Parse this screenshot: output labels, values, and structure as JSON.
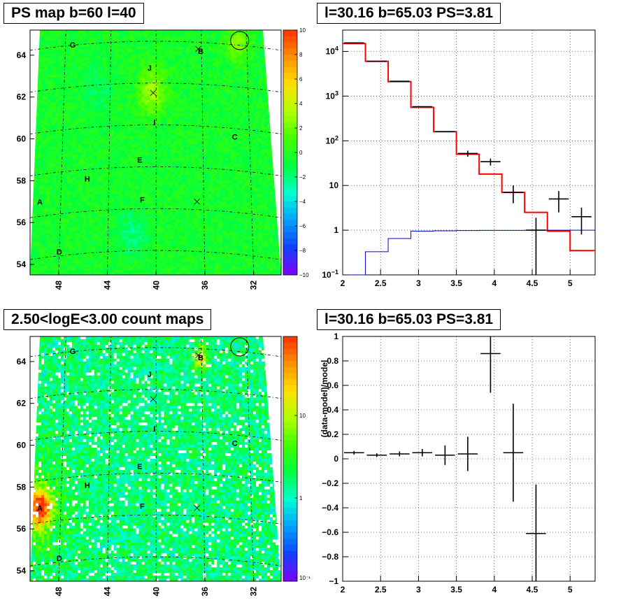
{
  "panels": {
    "ps_map": {
      "title": "PS map b=60 l=40",
      "x_ticks": [
        "48",
        "44",
        "40",
        "36",
        "32"
      ],
      "y_ticks": [
        "54",
        "56",
        "58",
        "60",
        "62",
        "64"
      ],
      "z_ticks": [
        "10",
        "8",
        "6",
        "4",
        "2",
        "0",
        "−2",
        "−4",
        "−6",
        "−8",
        "−10"
      ],
      "sources": [
        "A",
        "B",
        "C",
        "D",
        "E",
        "F",
        "G",
        "H",
        "I",
        "J"
      ]
    },
    "count_map": {
      "title": "2.50<logE<3.00 count maps",
      "x_ticks": [
        "48",
        "44",
        "40",
        "36",
        "32"
      ],
      "y_ticks": [
        "54",
        "56",
        "58",
        "60",
        "62",
        "64"
      ],
      "z_ticks": [
        "10",
        "1",
        "10⁻¹"
      ],
      "sources": [
        "A",
        "B",
        "C",
        "D",
        "E",
        "F",
        "G",
        "H",
        "I",
        "J"
      ]
    },
    "spectrum": {
      "title": "l=30.16 b=65.03 PS=3.81"
    },
    "residual": {
      "title": "l=30.16 b=65.03 PS=3.81"
    }
  },
  "chart_data": [
    {
      "type": "heatmap",
      "title": "PS map b=60 l=40",
      "x_ticks": [
        48,
        44,
        40,
        36,
        32
      ],
      "y_ticks": [
        54,
        56,
        58,
        60,
        62,
        64
      ],
      "z_range": [
        -10,
        10
      ],
      "colorscale": [
        "#7f00ff",
        "#1040ff",
        "#00a0ff",
        "#00ffd0",
        "#00ff40",
        "#40ff00",
        "#b0ff00",
        "#ffe000",
        "#ff9000",
        "#ff3000"
      ],
      "sources": [
        {
          "label": "A",
          "l": 49.2,
          "b": 57.0
        },
        {
          "label": "B",
          "l": 36.0,
          "b": 64.2
        },
        {
          "label": "C",
          "l": 33.2,
          "b": 60.1
        },
        {
          "label": "D",
          "l": 47.6,
          "b": 54.6
        },
        {
          "label": "E",
          "l": 41.0,
          "b": 59.0
        },
        {
          "label": "F",
          "l": 40.8,
          "b": 57.1
        },
        {
          "label": "G",
          "l": 46.5,
          "b": 64.5
        },
        {
          "label": "H",
          "l": 45.3,
          "b": 58.1
        },
        {
          "label": "I",
          "l": 39.8,
          "b": 60.8
        },
        {
          "label": "J",
          "l": 40.2,
          "b": 63.4
        }
      ],
      "grid": true
    },
    {
      "type": "heatmap",
      "title": "2.50<logE<3.00 count maps",
      "x_ticks": [
        48,
        44,
        40,
        36,
        32
      ],
      "y_ticks": [
        54,
        56,
        58,
        60,
        62,
        64
      ],
      "z_scale": "log",
      "z_ticks": [
        "10",
        "1",
        "10^-1"
      ],
      "grid": true
    },
    {
      "type": "line",
      "title": "l=30.16 b=65.03 PS=3.81",
      "x_ticks": [
        2,
        2.5,
        3,
        3.5,
        4,
        4.5,
        5
      ],
      "xlim": [
        2,
        5.33
      ],
      "y_scale": "log",
      "ylim": [
        0.1,
        30000
      ],
      "y_ticks": [
        "10^-1",
        "1",
        "10",
        "10^2",
        "10^3",
        "10^4"
      ],
      "grid": true,
      "bin_edges": [
        2.0,
        2.3,
        2.6,
        2.9,
        3.2,
        3.5,
        3.8,
        4.1,
        4.4,
        4.7,
        5.0,
        5.33
      ],
      "series": [
        {
          "color": "#ff0000",
          "values": [
            15000,
            6000,
            2100,
            560,
            160,
            50,
            18,
            7,
            2.5,
            0.95,
            0.35
          ]
        },
        {
          "color": "#0000cc",
          "values": [
            0.02,
            0.33,
            0.65,
            0.95,
            0.97,
            0.98,
            0.99,
            0.99,
            1.0,
            1.0,
            1.0
          ]
        }
      ],
      "data_points": [
        {
          "x": 2.15,
          "y": 15500,
          "yerr": 0
        },
        {
          "x": 2.45,
          "y": 6000,
          "yerr": 0
        },
        {
          "x": 2.75,
          "y": 2150,
          "yerr": 0
        },
        {
          "x": 3.05,
          "y": 580,
          "yerr": 0
        },
        {
          "x": 3.35,
          "y": 160,
          "yerr": 0
        },
        {
          "x": 3.65,
          "y": 52,
          "yerr": 8
        },
        {
          "x": 3.95,
          "y": 34,
          "yerr": 6
        },
        {
          "x": 4.25,
          "y": 7,
          "yerr": 3
        },
        {
          "x": 4.55,
          "y": 1.0,
          "yerr": 0.9
        },
        {
          "x": 4.85,
          "y": 5,
          "yerr": 2.5
        },
        {
          "x": 5.15,
          "y": 2,
          "yerr": 1.2
        }
      ]
    },
    {
      "type": "scatter",
      "title": "l=30.16 b=65.03 PS=3.81",
      "ylabel": "(data-model)/model",
      "x_ticks": [
        2,
        2.5,
        3,
        3.5,
        4,
        4.5,
        5
      ],
      "xlim": [
        2,
        5.33
      ],
      "ylim": [
        -1,
        1
      ],
      "y_ticks": [
        -1,
        -0.8,
        -0.6,
        -0.4,
        -0.2,
        0,
        0.2,
        0.4,
        0.6,
        0.8,
        1
      ],
      "grid": true,
      "data_points": [
        {
          "x": 2.15,
          "y": 0.05,
          "yerr": 0.015
        },
        {
          "x": 2.45,
          "y": 0.03,
          "yerr": 0.015
        },
        {
          "x": 2.75,
          "y": 0.04,
          "yerr": 0.02
        },
        {
          "x": 3.05,
          "y": 0.05,
          "yerr": 0.03
        },
        {
          "x": 3.35,
          "y": 0.03,
          "yerr": 0.08
        },
        {
          "x": 3.65,
          "y": 0.04,
          "yerr": 0.14
        },
        {
          "x": 3.95,
          "y": 0.86,
          "yerr": 0.32
        },
        {
          "x": 4.25,
          "y": 0.05,
          "yerr": 0.4
        },
        {
          "x": 4.55,
          "y": -0.61,
          "yerr": 0.4
        }
      ]
    }
  ]
}
